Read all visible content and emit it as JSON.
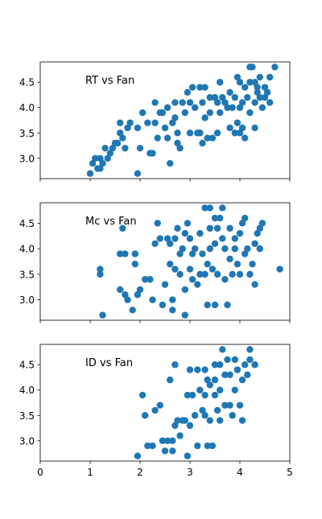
{
  "chart_data": [
    {
      "type": "scatter",
      "title": "",
      "label": "RT vs Fan",
      "xlabel": "",
      "ylabel": "",
      "xlim": [
        0,
        5
      ],
      "ylim": [
        2.6,
        4.9
      ],
      "xticks": [],
      "yticks": [
        "3.0",
        "3.5",
        "4.0",
        "4.5"
      ],
      "color": "#1f77b4",
      "points": [
        [
          1.0,
          2.7
        ],
        [
          1.05,
          2.9
        ],
        [
          1.1,
          3.0
        ],
        [
          1.15,
          2.8
        ],
        [
          1.2,
          2.8
        ],
        [
          1.2,
          3.0
        ],
        [
          1.25,
          2.9
        ],
        [
          1.3,
          3.2
        ],
        [
          1.35,
          3.0
        ],
        [
          1.4,
          3.1
        ],
        [
          1.45,
          3.2
        ],
        [
          1.5,
          3.3
        ],
        [
          1.55,
          3.3
        ],
        [
          1.6,
          3.7
        ],
        [
          1.6,
          3.5
        ],
        [
          1.65,
          3.4
        ],
        [
          1.7,
          3.2
        ],
        [
          1.75,
          3.6
        ],
        [
          1.8,
          3.7
        ],
        [
          1.95,
          3.6
        ],
        [
          1.95,
          2.7
        ],
        [
          2.0,
          3.2
        ],
        [
          2.05,
          3.9
        ],
        [
          2.15,
          3.7
        ],
        [
          2.2,
          3.1
        ],
        [
          2.25,
          3.1
        ],
        [
          2.3,
          4.1
        ],
        [
          2.3,
          3.7
        ],
        [
          2.35,
          3.4
        ],
        [
          2.4,
          3.9
        ],
        [
          2.45,
          3.9
        ],
        [
          2.5,
          3.6
        ],
        [
          2.55,
          4.0
        ],
        [
          2.55,
          3.4
        ],
        [
          2.6,
          2.9
        ],
        [
          2.65,
          3.7
        ],
        [
          2.7,
          3.8
        ],
        [
          2.7,
          4.1
        ],
        [
          2.75,
          3.5
        ],
        [
          2.75,
          3.3
        ],
        [
          2.8,
          3.2
        ],
        [
          2.85,
          4.1
        ],
        [
          2.9,
          3.9
        ],
        [
          2.95,
          4.3
        ],
        [
          3.0,
          4.1
        ],
        [
          3.0,
          3.5
        ],
        [
          3.05,
          4.4
        ],
        [
          3.1,
          4.0
        ],
        [
          3.15,
          3.5
        ],
        [
          3.2,
          4.4
        ],
        [
          3.2,
          3.5
        ],
        [
          3.25,
          4.1
        ],
        [
          3.25,
          3.3
        ],
        [
          3.3,
          4.4
        ],
        [
          3.3,
          3.8
        ],
        [
          3.35,
          3.4
        ],
        [
          3.4,
          4.2
        ],
        [
          3.4,
          3.9
        ],
        [
          3.45,
          3.4
        ],
        [
          3.5,
          4.2
        ],
        [
          3.55,
          4.1
        ],
        [
          3.55,
          3.5
        ],
        [
          3.6,
          4.5
        ],
        [
          3.6,
          3.9
        ],
        [
          3.65,
          4.2
        ],
        [
          3.7,
          4.1
        ],
        [
          3.75,
          4.0
        ],
        [
          3.8,
          4.3
        ],
        [
          3.8,
          3.6
        ],
        [
          3.85,
          4.0
        ],
        [
          3.9,
          4.2
        ],
        [
          3.9,
          3.5
        ],
        [
          3.95,
          4.6
        ],
        [
          3.95,
          3.7
        ],
        [
          4.0,
          4.5
        ],
        [
          4.0,
          4.0
        ],
        [
          4.0,
          3.5
        ],
        [
          4.05,
          4.1
        ],
        [
          4.05,
          3.6
        ],
        [
          4.1,
          4.4
        ],
        [
          4.1,
          3.4
        ],
        [
          4.15,
          4.2
        ],
        [
          4.2,
          4.8
        ],
        [
          4.2,
          4.5
        ],
        [
          4.2,
          3.9
        ],
        [
          4.25,
          4.8
        ],
        [
          4.3,
          4.5
        ],
        [
          4.3,
          4.1
        ],
        [
          4.3,
          3.6
        ],
        [
          4.35,
          4.4
        ],
        [
          4.35,
          4.3
        ],
        [
          4.4,
          4.6
        ],
        [
          4.4,
          4.2
        ],
        [
          4.45,
          4.0
        ],
        [
          4.5,
          4.4
        ],
        [
          4.5,
          4.2
        ],
        [
          4.55,
          4.3
        ],
        [
          4.6,
          4.6
        ],
        [
          4.6,
          4.1
        ],
        [
          4.7,
          4.8
        ]
      ]
    },
    {
      "type": "scatter",
      "title": "",
      "label": "Mc vs Fan",
      "xlabel": "",
      "ylabel": "",
      "xlim": [
        0,
        5
      ],
      "ylim": [
        2.6,
        4.9
      ],
      "xticks": [],
      "yticks": [
        "3.0",
        "3.5",
        "4.0",
        "4.5"
      ],
      "color": "#1f77b4",
      "points": [
        [
          1.2,
          3.5
        ],
        [
          1.2,
          3.6
        ],
        [
          1.25,
          2.7
        ],
        [
          1.6,
          3.9
        ],
        [
          1.6,
          3.2
        ],
        [
          1.65,
          4.4
        ],
        [
          1.7,
          3.1
        ],
        [
          1.7,
          3.9
        ],
        [
          1.75,
          3.0
        ],
        [
          1.85,
          2.8
        ],
        [
          1.9,
          3.7
        ],
        [
          1.9,
          3.9
        ],
        [
          1.95,
          3.1
        ],
        [
          2.0,
          3.2
        ],
        [
          2.1,
          3.4
        ],
        [
          2.2,
          3.4
        ],
        [
          2.25,
          3.0
        ],
        [
          2.3,
          4.1
        ],
        [
          2.35,
          4.5
        ],
        [
          2.4,
          4.2
        ],
        [
          2.45,
          2.9
        ],
        [
          2.5,
          3.3
        ],
        [
          2.55,
          4.2
        ],
        [
          2.6,
          4.1
        ],
        [
          2.6,
          3.7
        ],
        [
          2.65,
          2.8
        ],
        [
          2.65,
          3.0
        ],
        [
          2.7,
          4.2
        ],
        [
          2.7,
          3.6
        ],
        [
          2.75,
          4.4
        ],
        [
          2.8,
          3.9
        ],
        [
          2.8,
          3.5
        ],
        [
          2.85,
          4.0
        ],
        [
          2.9,
          4.3
        ],
        [
          2.9,
          3.2
        ],
        [
          2.9,
          2.7
        ],
        [
          2.95,
          4.5
        ],
        [
          3.0,
          4.2
        ],
        [
          3.0,
          3.6
        ],
        [
          3.05,
          3.9
        ],
        [
          3.05,
          3.4
        ],
        [
          3.1,
          4.0
        ],
        [
          3.15,
          3.3
        ],
        [
          3.2,
          4.3
        ],
        [
          3.2,
          3.5
        ],
        [
          3.25,
          3.9
        ],
        [
          3.3,
          4.8
        ],
        [
          3.3,
          3.5
        ],
        [
          3.35,
          2.9
        ],
        [
          3.35,
          3.7
        ],
        [
          3.4,
          4.8
        ],
        [
          3.4,
          4.4
        ],
        [
          3.4,
          4.0
        ],
        [
          3.45,
          3.6
        ],
        [
          3.5,
          4.6
        ],
        [
          3.5,
          4.1
        ],
        [
          3.5,
          2.9
        ],
        [
          3.55,
          4.4
        ],
        [
          3.55,
          3.5
        ],
        [
          3.6,
          4.6
        ],
        [
          3.65,
          4.8
        ],
        [
          3.65,
          4.2
        ],
        [
          3.7,
          4.0
        ],
        [
          3.7,
          3.4
        ],
        [
          3.75,
          2.9
        ],
        [
          3.8,
          4.4
        ],
        [
          3.8,
          3.8
        ],
        [
          3.85,
          3.5
        ],
        [
          3.9,
          4.2
        ],
        [
          3.9,
          4.0
        ],
        [
          3.95,
          3.7
        ],
        [
          4.0,
          4.3
        ],
        [
          4.0,
          3.5
        ],
        [
          4.05,
          4.5
        ],
        [
          4.1,
          4.6
        ],
        [
          4.1,
          3.9
        ],
        [
          4.15,
          4.0
        ],
        [
          4.2,
          3.5
        ],
        [
          4.25,
          3.7
        ],
        [
          4.3,
          4.1
        ],
        [
          4.3,
          3.3
        ],
        [
          4.35,
          4.3
        ],
        [
          4.4,
          4.0
        ],
        [
          4.4,
          4.4
        ],
        [
          4.45,
          4.5
        ],
        [
          4.8,
          3.6
        ]
      ]
    },
    {
      "type": "scatter",
      "title": "",
      "label": "ID vs Fan",
      "xlabel": "",
      "ylabel": "",
      "xlim": [
        0,
        5
      ],
      "ylim": [
        2.6,
        4.9
      ],
      "xticks": [
        "0",
        "1",
        "2",
        "3",
        "4",
        "5"
      ],
      "yticks": [
        "3.0",
        "3.5",
        "4.0",
        "4.5"
      ],
      "color": "#1f77b4",
      "points": [
        [
          1.95,
          2.7
        ],
        [
          2.05,
          3.9
        ],
        [
          2.1,
          3.5
        ],
        [
          2.15,
          2.9
        ],
        [
          2.25,
          2.9
        ],
        [
          2.3,
          3.6
        ],
        [
          2.4,
          3.7
        ],
        [
          2.45,
          3.0
        ],
        [
          2.5,
          2.8
        ],
        [
          2.55,
          3.0
        ],
        [
          2.6,
          4.2
        ],
        [
          2.65,
          2.8
        ],
        [
          2.65,
          3.0
        ],
        [
          2.7,
          3.3
        ],
        [
          2.7,
          4.5
        ],
        [
          2.75,
          3.4
        ],
        [
          2.8,
          3.1
        ],
        [
          2.85,
          3.4
        ],
        [
          2.9,
          3.4
        ],
        [
          2.95,
          2.7
        ],
        [
          2.95,
          3.9
        ],
        [
          3.0,
          4.4
        ],
        [
          3.0,
          3.3
        ],
        [
          3.05,
          3.9
        ],
        [
          3.1,
          3.5
        ],
        [
          3.15,
          4.4
        ],
        [
          3.15,
          2.9
        ],
        [
          3.2,
          4.0
        ],
        [
          3.25,
          3.6
        ],
        [
          3.3,
          4.4
        ],
        [
          3.3,
          3.9
        ],
        [
          3.3,
          3.5
        ],
        [
          3.35,
          4.2
        ],
        [
          3.35,
          2.9
        ],
        [
          3.4,
          4.1
        ],
        [
          3.4,
          3.4
        ],
        [
          3.45,
          2.9
        ],
        [
          3.5,
          4.5
        ],
        [
          3.5,
          4.2
        ],
        [
          3.5,
          3.9
        ],
        [
          3.55,
          3.6
        ],
        [
          3.6,
          4.5
        ],
        [
          3.6,
          4.0
        ],
        [
          3.6,
          3.4
        ],
        [
          3.65,
          4.8
        ],
        [
          3.7,
          4.3
        ],
        [
          3.7,
          3.7
        ],
        [
          3.75,
          4.6
        ],
        [
          3.8,
          4.3
        ],
        [
          3.8,
          3.7
        ],
        [
          3.85,
          3.5
        ],
        [
          3.9,
          4.6
        ],
        [
          3.9,
          4.0
        ],
        [
          3.95,
          4.4
        ],
        [
          4.0,
          3.7
        ],
        [
          4.05,
          3.4
        ],
        [
          4.05,
          4.2
        ],
        [
          4.1,
          4.5
        ],
        [
          4.15,
          4.3
        ],
        [
          4.2,
          4.8
        ],
        [
          4.2,
          4.6
        ],
        [
          4.3,
          4.5
        ]
      ]
    }
  ]
}
